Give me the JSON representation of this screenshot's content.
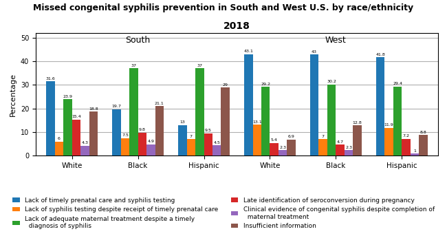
{
  "chart_data": {
    "type": "bar",
    "title": "Missed congenital syphilis prevention in South and West U.S. by race/ethnicity",
    "subtitle": "2018",
    "y_label": "Percentage",
    "categories": [
      "White",
      "Black",
      "Hispanic",
      "White",
      "Black",
      "Hispanic"
    ],
    "annotations": [
      "South",
      "West"
    ],
    "ylim": [
      0,
      52
    ],
    "yticks": [
      0,
      10,
      20,
      30,
      40,
      50
    ],
    "grid": true,
    "legend": "lower center",
    "data_labels": true,
    "series": [
      {
        "name": "Lack of timely prenatal care and syphilis testing",
        "values": [
          31.6,
          19.7,
          13,
          43.1,
          43,
          41.8
        ]
      },
      {
        "name": "Lack of syphilis testing despite receipt of timely prenatal care",
        "values": [
          6,
          7.5,
          7,
          13.1,
          7,
          11.9
        ]
      },
      {
        "name": "Lack of adequate maternal treatment despite a timely\n  diagnosis of syphilis",
        "values": [
          23.9,
          37,
          37,
          29.2,
          30.2,
          29.4
        ]
      },
      {
        "name": "Late identification of seroconversion during pregnancy",
        "values": [
          15.4,
          9.8,
          9.5,
          5.4,
          4.7,
          7.2
        ]
      },
      {
        "name": "Clinical evidence of congenital syphilis despite completion of\n  maternal treatment",
        "values": [
          4.3,
          4.9,
          4.5,
          2.3,
          2.3,
          1
        ]
      },
      {
        "name": "Insufficient information",
        "values": [
          18.8,
          21.1,
          29,
          6.9,
          12.8,
          8.8
        ]
      }
    ]
  }
}
